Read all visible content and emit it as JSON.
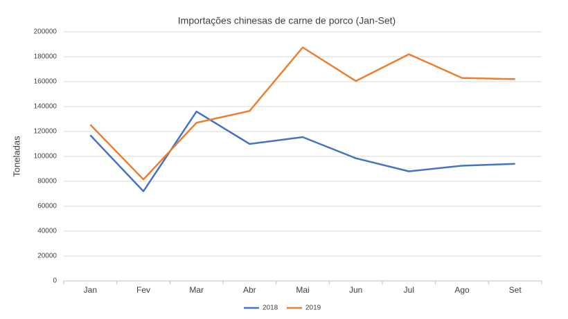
{
  "chart_data": {
    "type": "line",
    "title": "Importações chinesas de carne de porco (Jan-Set)",
    "y_label": "Toneladas",
    "categories": [
      "Jan",
      "Fev",
      "Mar",
      "Abr",
      "Mai",
      "Jun",
      "Jul",
      "Ago",
      "Set"
    ],
    "series": [
      {
        "name": "2018",
        "color": "#4472c4",
        "values": [
          117000,
          72000,
          136000,
          110000,
          115500,
          98500,
          88000,
          92500,
          94000
        ]
      },
      {
        "name": "2019",
        "color": "#ed7d31",
        "values": [
          125500,
          81500,
          127000,
          136500,
          187500,
          160500,
          182000,
          163000,
          162000
        ]
      }
    ],
    "ylim": [
      0,
      200000
    ],
    "yticks": [
      0,
      20000,
      40000,
      60000,
      80000,
      100000,
      120000,
      140000,
      160000,
      180000,
      200000
    ],
    "grid": true,
    "legend": "bottom"
  }
}
